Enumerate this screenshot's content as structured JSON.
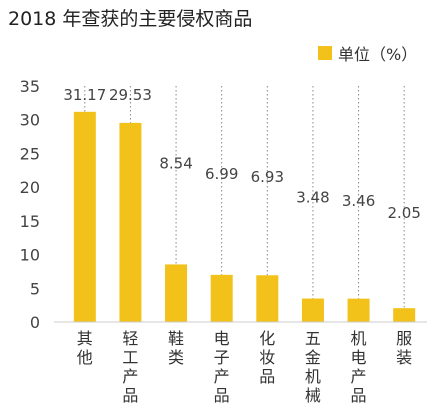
{
  "chart_data": {
    "type": "bar",
    "title": "2018 年查获的主要侵权商品",
    "legend": {
      "label": "单位（%）",
      "placement": "top-right"
    },
    "categories": [
      "其他",
      "轻工产品",
      "鞋类",
      "电子产品",
      "化妆品",
      "五金机械",
      "机电产品",
      "服装"
    ],
    "values": [
      31.17,
      29.53,
      8.54,
      6.99,
      6.93,
      3.48,
      3.46,
      2.05
    ],
    "data_labels": [
      "31.17",
      "29.53",
      "8.54",
      "6.99",
      "6.93",
      "3.48",
      "3.46",
      "2.05"
    ],
    "ylim": [
      0,
      35
    ],
    "yticks": [
      0,
      5,
      10,
      15,
      20,
      25,
      30,
      35
    ],
    "grid": "dotted vertical leader lines",
    "bar_color": "#F2C11A",
    "grid_color": "#888888"
  }
}
